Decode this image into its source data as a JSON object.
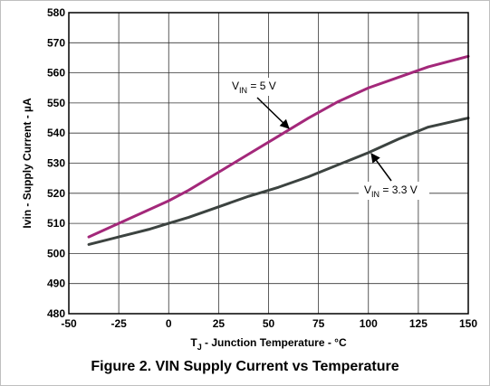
{
  "caption": "Figure 2. VIN Supply Current vs Temperature",
  "chart_data": {
    "type": "line",
    "xlabel": "T_J - Junction Temperature - °C",
    "ylabel": "Ivin - Supply Current - µA",
    "xlim": [
      -50,
      150
    ],
    "ylim": [
      480,
      580
    ],
    "x_ticks": [
      -50,
      -25,
      0,
      25,
      50,
      75,
      100,
      125,
      150
    ],
    "y_ticks": [
      480,
      490,
      500,
      510,
      520,
      530,
      540,
      550,
      560,
      570,
      580
    ],
    "grid": true,
    "series": [
      {
        "name": "V_IN = 5 V",
        "color": "#a3287a",
        "x": [
          -40,
          -25,
          -10,
          0,
          10,
          25,
          40,
          55,
          70,
          85,
          100,
          115,
          130,
          150
        ],
        "y": [
          505.5,
          510,
          514.5,
          517.5,
          521,
          527,
          533,
          539,
          545,
          550.5,
          555,
          558.5,
          562,
          565.5
        ]
      },
      {
        "name": "V_IN = 3.3 V",
        "color": "#3c4340",
        "x": [
          -40,
          -25,
          -10,
          0,
          10,
          25,
          40,
          55,
          70,
          85,
          100,
          115,
          130,
          150
        ],
        "y": [
          503,
          505.5,
          508,
          510,
          512,
          515.5,
          519,
          522,
          525.5,
          529.5,
          533.5,
          538,
          542,
          545
        ]
      }
    ],
    "annotations": [
      {
        "label_main": "V",
        "label_sub": "IN",
        "label_rest": " = 5 V",
        "series": 0
      },
      {
        "label_main": "V",
        "label_sub": "IN",
        "label_rest": " = 3.3 V",
        "series": 1
      }
    ],
    "xlabel_parts": {
      "main": "T",
      "sub": "J",
      "rest": " - Junction Temperature - °C"
    },
    "ylabel_parts": {
      "main": "Ivin - Supply Current - ",
      "unit": "µA"
    }
  }
}
